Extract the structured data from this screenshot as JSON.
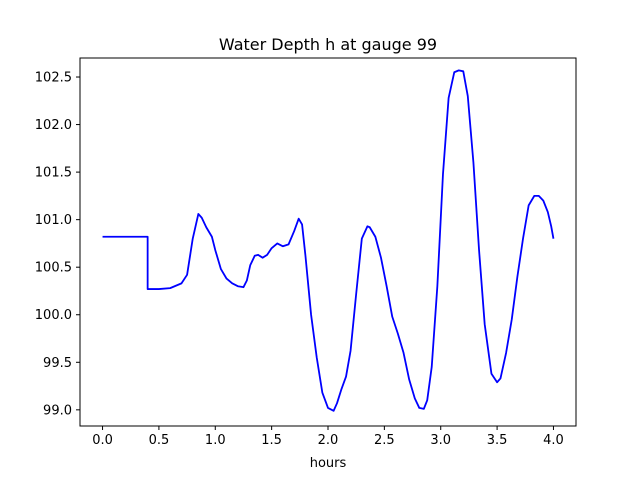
{
  "chart_data": {
    "type": "line",
    "title": "Water Depth h at gauge 99",
    "xlabel": "hours",
    "ylabel": "",
    "xlim": [
      -0.2,
      4.2
    ],
    "ylim": [
      98.83,
      102.7
    ],
    "grid": false,
    "x_ticks": [
      0.0,
      0.5,
      1.0,
      1.5,
      2.0,
      2.5,
      3.0,
      3.5,
      4.0
    ],
    "x_tick_labels": [
      "0.0",
      "0.5",
      "1.0",
      "1.5",
      "2.0",
      "2.5",
      "3.0",
      "3.5",
      "4.0"
    ],
    "y_ticks": [
      99.0,
      99.5,
      100.0,
      100.5,
      101.0,
      101.5,
      102.0,
      102.5
    ],
    "y_tick_labels": [
      "99.0",
      "99.5",
      "100.0",
      "100.5",
      "101.0",
      "101.5",
      "102.0",
      "102.5"
    ],
    "series": [
      {
        "color": "#0000ff",
        "x": [
          0.0,
          0.1,
          0.2,
          0.3,
          0.4,
          0.4,
          0.5,
          0.6,
          0.7,
          0.75,
          0.8,
          0.85,
          0.88,
          0.92,
          0.97,
          1.0,
          1.05,
          1.1,
          1.15,
          1.2,
          1.25,
          1.28,
          1.31,
          1.35,
          1.38,
          1.42,
          1.46,
          1.5,
          1.55,
          1.6,
          1.65,
          1.7,
          1.74,
          1.77,
          1.8,
          1.85,
          1.9,
          1.95,
          2.0,
          2.05,
          2.08,
          2.12,
          2.16,
          2.2,
          2.25,
          2.3,
          2.35,
          2.37,
          2.42,
          2.47,
          2.52,
          2.57,
          2.62,
          2.67,
          2.72,
          2.77,
          2.81,
          2.85,
          2.88,
          2.92,
          2.97,
          3.02,
          3.07,
          3.12,
          3.16,
          3.2,
          3.24,
          3.29,
          3.34,
          3.39,
          3.45,
          3.5,
          3.53,
          3.58,
          3.63,
          3.68,
          3.73,
          3.78,
          3.83,
          3.87,
          3.91,
          3.95,
          3.98,
          4.0
        ],
        "values": [
          100.82,
          100.82,
          100.82,
          100.82,
          100.82,
          100.27,
          100.27,
          100.28,
          100.33,
          100.42,
          100.8,
          101.06,
          101.02,
          100.92,
          100.82,
          100.68,
          100.48,
          100.38,
          100.33,
          100.3,
          100.29,
          100.36,
          100.52,
          100.62,
          100.63,
          100.6,
          100.63,
          100.7,
          100.75,
          100.72,
          100.74,
          100.88,
          101.01,
          100.95,
          100.62,
          100.0,
          99.55,
          99.18,
          99.02,
          98.99,
          99.07,
          99.22,
          99.35,
          99.62,
          100.22,
          100.8,
          100.93,
          100.92,
          100.82,
          100.6,
          100.3,
          99.98,
          99.8,
          99.6,
          99.32,
          99.12,
          99.02,
          99.01,
          99.1,
          99.45,
          100.3,
          101.48,
          102.28,
          102.55,
          102.57,
          102.56,
          102.3,
          101.6,
          100.68,
          99.9,
          99.38,
          99.29,
          99.33,
          99.6,
          99.95,
          100.4,
          100.8,
          101.15,
          101.25,
          101.25,
          101.2,
          101.08,
          100.93,
          100.8
        ]
      }
    ]
  }
}
